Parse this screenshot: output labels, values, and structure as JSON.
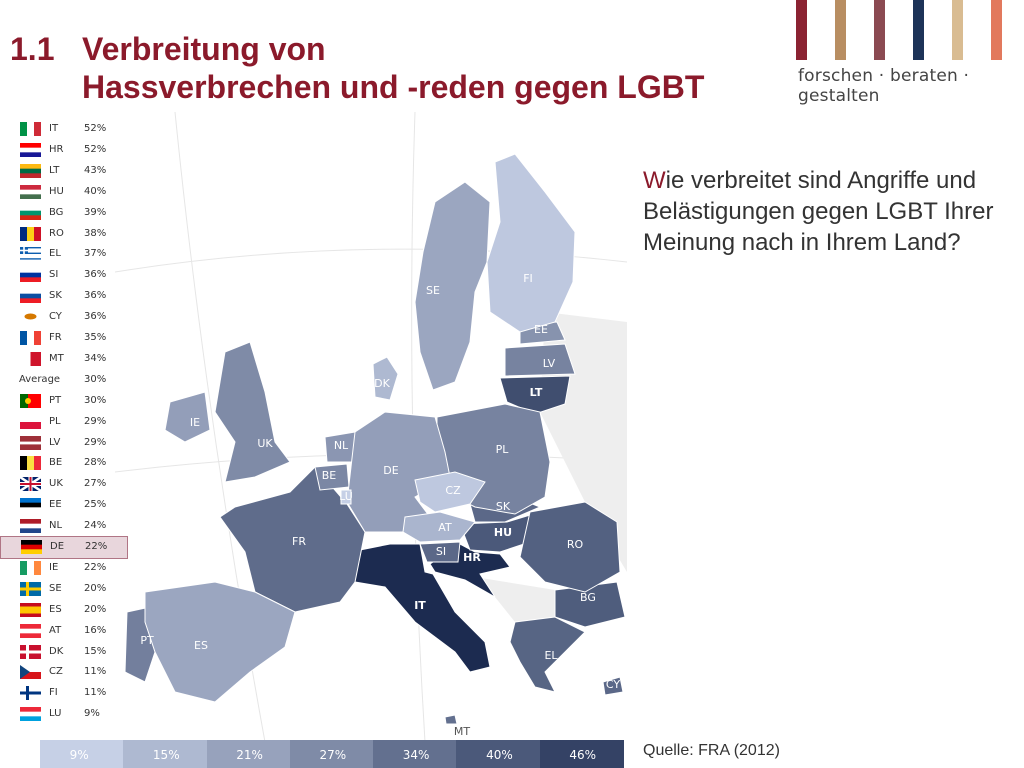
{
  "header": {
    "number": "1.1",
    "title_line1": "Verbreitung von",
    "title_line2": "Hassverbrechen und -reden gegen LGBT"
  },
  "logo": {
    "tagline": "forschen · beraten · gestalten",
    "bar_colors": [
      "#8b2332",
      "#b88e62",
      "#8b4a52",
      "#1d3358",
      "#d9bc92",
      "#e2795d"
    ]
  },
  "question": {
    "first_letter": "W",
    "text": "ie verbreitet sind Angriffe und Belästigungen gegen LGBT Ihrer Meinung nach in Ihrem Land?"
  },
  "source": "Quelle:  FRA (2012)",
  "chart_data": {
    "type": "choropleth-map",
    "unit": "%",
    "legend_entries": [
      {
        "code": "IT",
        "value": 52,
        "label": "52%",
        "icon": "flag-italy"
      },
      {
        "code": "HR",
        "value": 52,
        "label": "52%",
        "icon": "flag-croatia"
      },
      {
        "code": "LT",
        "value": 43,
        "label": "43%",
        "icon": "flag-lithuania"
      },
      {
        "code": "HU",
        "value": 40,
        "label": "40%",
        "icon": "flag-hungary"
      },
      {
        "code": "BG",
        "value": 39,
        "label": "39%",
        "icon": "flag-bulgaria"
      },
      {
        "code": "RO",
        "value": 38,
        "label": "38%",
        "icon": "flag-romania"
      },
      {
        "code": "EL",
        "value": 37,
        "label": "37%",
        "icon": "flag-greece"
      },
      {
        "code": "SI",
        "value": 36,
        "label": "36%",
        "icon": "flag-slovenia"
      },
      {
        "code": "SK",
        "value": 36,
        "label": "36%",
        "icon": "flag-slovakia"
      },
      {
        "code": "CY",
        "value": 36,
        "label": "36%",
        "icon": "flag-cyprus"
      },
      {
        "code": "FR",
        "value": 35,
        "label": "35%",
        "icon": "flag-france"
      },
      {
        "code": "MT",
        "value": 34,
        "label": "34%",
        "icon": "flag-malta"
      },
      {
        "code": "Average",
        "value": 30,
        "label": "30%",
        "icon": ""
      },
      {
        "code": "PT",
        "value": 30,
        "label": "30%",
        "icon": "flag-portugal"
      },
      {
        "code": "PL",
        "value": 29,
        "label": "29%",
        "icon": "flag-poland"
      },
      {
        "code": "LV",
        "value": 29,
        "label": "29%",
        "icon": "flag-latvia"
      },
      {
        "code": "BE",
        "value": 28,
        "label": "28%",
        "icon": "flag-belgium"
      },
      {
        "code": "UK",
        "value": 27,
        "label": "27%",
        "icon": "flag-uk"
      },
      {
        "code": "EE",
        "value": 25,
        "label": "25%",
        "icon": "flag-estonia"
      },
      {
        "code": "NL",
        "value": 24,
        "label": "24%",
        "icon": "flag-netherlands"
      },
      {
        "code": "DE",
        "value": 22,
        "label": "22%",
        "icon": "flag-germany",
        "highlighted": true
      },
      {
        "code": "IE",
        "value": 22,
        "label": "22%",
        "icon": "flag-ireland"
      },
      {
        "code": "SE",
        "value": 20,
        "label": "20%",
        "icon": "flag-sweden"
      },
      {
        "code": "ES",
        "value": 20,
        "label": "20%",
        "icon": "flag-spain"
      },
      {
        "code": "AT",
        "value": 16,
        "label": "16%",
        "icon": "flag-austria"
      },
      {
        "code": "DK",
        "value": 15,
        "label": "15%",
        "icon": "flag-denmark"
      },
      {
        "code": "CZ",
        "value": 11,
        "label": "11%",
        "icon": "flag-czechia"
      },
      {
        "code": "FI",
        "value": 11,
        "label": "11%",
        "icon": "flag-finland"
      },
      {
        "code": "LU",
        "value": 9,
        "label": "9%",
        "icon": "flag-luxembourg"
      }
    ],
    "map_labels": [
      "IT",
      "HR",
      "LT",
      "HU",
      "BG",
      "RO",
      "EL",
      "SI",
      "SK",
      "CY",
      "FR",
      "MT",
      "PT",
      "PL",
      "LV",
      "BE",
      "UK",
      "EE",
      "NL",
      "DE",
      "IE",
      "SE",
      "ES",
      "AT",
      "DK",
      "CZ",
      "FI",
      "LU"
    ],
    "color_scale": {
      "ticks": [
        "9%",
        "15%",
        "21%",
        "27%",
        "34%",
        "40%",
        "46%"
      ],
      "min_value": 9,
      "max_value": 52,
      "colors": [
        "#c6d0e6",
        "#1c2b50"
      ]
    }
  }
}
